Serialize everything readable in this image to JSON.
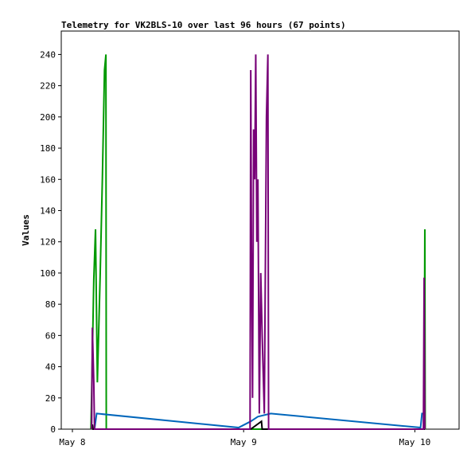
{
  "chart_data": {
    "type": "line",
    "title": "Telemetry for VK2BLS-10 over last 96 hours (67 points)",
    "y_label": "Values",
    "xlim": [
      -1.56,
      54.2
    ],
    "ylim": [
      0,
      255
    ],
    "xticks": [
      {
        "value": 0,
        "label": "May 8"
      },
      {
        "value": 24,
        "label": "May 9"
      },
      {
        "value": 48,
        "label": "May 10"
      }
    ],
    "yticks": [
      0,
      20,
      40,
      60,
      80,
      100,
      120,
      140,
      160,
      180,
      200,
      220,
      240
    ],
    "series": [
      {
        "color": "#009900",
        "x": [
          2.6,
          3.0,
          3.24,
          3.5,
          3.9,
          4.2,
          4.5,
          4.7,
          4.75,
          49.3,
          49.4,
          49.45
        ],
        "values": [
          0,
          96,
          128,
          30,
          100,
          160,
          230,
          240,
          0,
          0,
          128,
          0
        ]
      },
      {
        "color": "#0066bb",
        "x": [
          3.1,
          3.4,
          23.3,
          25.0,
          26.0,
          27.8,
          48.8,
          49.0,
          49.3
        ],
        "values": [
          0,
          10,
          1,
          5,
          8,
          10,
          1,
          10,
          10
        ]
      },
      {
        "color": "#000000",
        "x": [
          2.7,
          2.8,
          2.9,
          25.0,
          26.5,
          26.6,
          49.4
        ],
        "values": [
          0,
          3,
          0,
          0,
          5,
          0,
          0
        ]
      },
      {
        "color": "#770077",
        "x": [
          2.7,
          2.8,
          3.0,
          3.1,
          24.9,
          25.0,
          25.1,
          25.25,
          25.4,
          25.55,
          25.7,
          25.85,
          26.0,
          26.2,
          26.4,
          26.6,
          26.9,
          27.2,
          27.4,
          27.5,
          49.2,
          49.3,
          49.4
        ],
        "values": [
          0,
          65,
          30,
          0,
          0,
          230,
          115,
          20,
          192,
          160,
          240,
          120,
          160,
          10,
          100,
          60,
          10,
          200,
          240,
          0,
          0,
          97,
          0
        ]
      }
    ]
  }
}
